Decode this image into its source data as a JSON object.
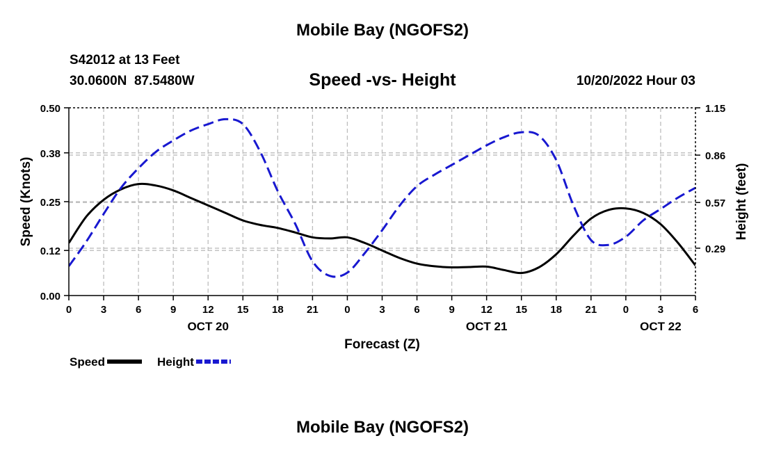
{
  "chart_data": {
    "type": "line",
    "title": "Mobile Bay (NGOFS2)",
    "footer_title": "Mobile Bay (NGOFS2)",
    "station_line": "S42012 at 13 Feet",
    "coords_line": "30.0600N  87.5480W",
    "subtitle": "Speed -vs- Height",
    "datetime_line": "10/20/2022 Hour 03",
    "xlabel": "Forecast (Z)",
    "ylabel_left": "Speed (Knots)",
    "ylabel_right": "Height (feet)",
    "xlim": [
      0,
      54
    ],
    "ylim_left": [
      0,
      0.5
    ],
    "ylim_right": [
      0,
      1.15
    ],
    "x_ticks": [
      0,
      3,
      6,
      9,
      12,
      15,
      18,
      21,
      24,
      27,
      30,
      33,
      36,
      39,
      42,
      45,
      48,
      51,
      54
    ],
    "x_tick_labels": [
      "0",
      "3",
      "6",
      "9",
      "12",
      "15",
      "18",
      "21",
      "0",
      "3",
      "6",
      "9",
      "12",
      "15",
      "18",
      "21",
      "0",
      "3",
      "6"
    ],
    "date_labels": [
      {
        "x": 12,
        "label": "OCT 20"
      },
      {
        "x": 36,
        "label": "OCT 21"
      },
      {
        "x": 51,
        "label": "OCT 22"
      }
    ],
    "y_ticks_left": [
      0.0,
      0.12,
      0.25,
      0.38,
      0.5
    ],
    "y_tick_labels_left": [
      "0.00",
      "0.12",
      "0.25",
      "0.38",
      "0.50"
    ],
    "y_ticks_right": [
      0.29,
      0.57,
      0.86,
      1.15
    ],
    "y_tick_labels_right": [
      "0.29",
      "0.57",
      "0.86",
      "1.15"
    ],
    "grid": true,
    "legend": "bottom-left",
    "series": [
      {
        "name": "Speed",
        "axis": "left",
        "color": "#000000",
        "style": "solid",
        "x": [
          0,
          1.5,
          3,
          4.5,
          6,
          7.5,
          9,
          10.5,
          12,
          13.5,
          15,
          16.5,
          18,
          19.5,
          21,
          22.5,
          24,
          25.5,
          27,
          28.5,
          30,
          31.5,
          33,
          34.5,
          36,
          37.5,
          39,
          40.5,
          42,
          43.5,
          45,
          46.5,
          48,
          49.5,
          51,
          52.5,
          54
        ],
        "values": [
          0.14,
          0.21,
          0.255,
          0.283,
          0.297,
          0.293,
          0.28,
          0.26,
          0.24,
          0.22,
          0.2,
          0.188,
          0.18,
          0.168,
          0.155,
          0.152,
          0.155,
          0.14,
          0.12,
          0.1,
          0.085,
          0.078,
          0.075,
          0.076,
          0.077,
          0.068,
          0.06,
          0.075,
          0.11,
          0.16,
          0.205,
          0.228,
          0.232,
          0.22,
          0.19,
          0.14,
          0.08
        ]
      },
      {
        "name": "Height",
        "axis": "right",
        "color": "#1818d0",
        "style": "dashed",
        "x": [
          0,
          1.5,
          3,
          4.5,
          6,
          7.5,
          9,
          10.5,
          12,
          13.5,
          15,
          16.5,
          18,
          19.5,
          21,
          22.5,
          24,
          25.5,
          27,
          28.5,
          30,
          31.5,
          33,
          34.5,
          36,
          37.5,
          39,
          40.5,
          42,
          43.5,
          45,
          46.5,
          48,
          49.5,
          51,
          52.5,
          54
        ],
        "values": [
          0.18,
          0.33,
          0.5,
          0.66,
          0.78,
          0.88,
          0.95,
          1.01,
          1.05,
          1.08,
          1.05,
          0.88,
          0.64,
          0.44,
          0.21,
          0.12,
          0.14,
          0.26,
          0.4,
          0.55,
          0.67,
          0.74,
          0.8,
          0.86,
          0.92,
          0.97,
          1.0,
          0.98,
          0.83,
          0.55,
          0.34,
          0.31,
          0.36,
          0.46,
          0.53,
          0.6,
          0.66
        ]
      }
    ]
  }
}
